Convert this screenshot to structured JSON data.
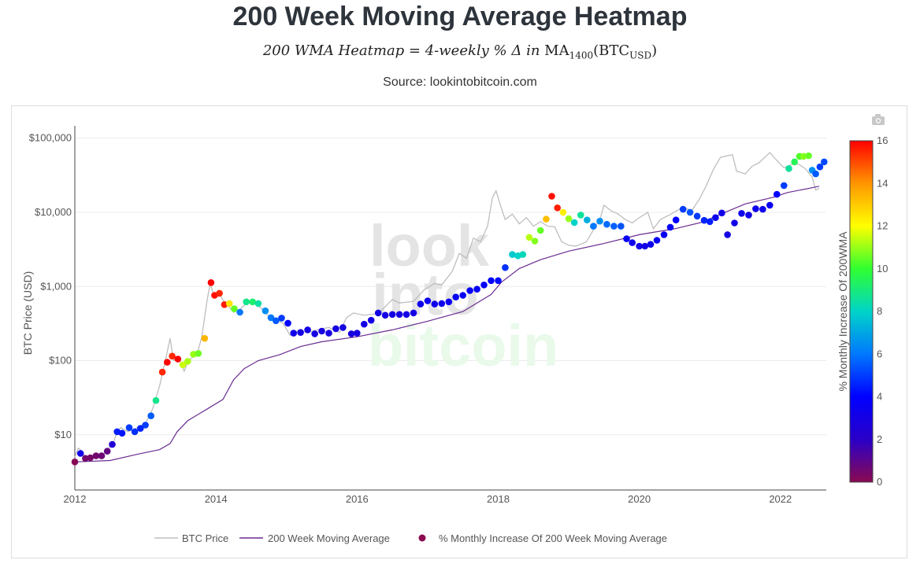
{
  "header": {
    "title": "200 Week Moving Average Heatmap",
    "subtitle_main": "200 WMA Heatmap = 4-weekly % Δ in ",
    "subtitle_ma": "MA",
    "subtitle_ma_sub": "1400",
    "subtitle_btc": "(BTC",
    "subtitle_btc_sub": "USD",
    "subtitle_close": ")",
    "source": "Source: lookintobitcoin.com"
  },
  "toolbar": {
    "camera_icon": "camera-icon"
  },
  "watermark": {
    "line1": "look",
    "line2": "into",
    "line3": "bitcoin",
    "color_gray": "#e4e4e4",
    "color_green": "#e9f9ea"
  },
  "chart_data": {
    "type": "scatter",
    "y_scale": "log",
    "xlim": [
      2012.0,
      2022.65
    ],
    "ylim": [
      1.8,
      130000
    ],
    "x_ticks": [
      2012,
      2014,
      2016,
      2018,
      2020,
      2022
    ],
    "x_tick_labels": [
      "2012",
      "2014",
      "2016",
      "2018",
      "2020",
      "2022"
    ],
    "y_ticks": [
      10,
      100,
      1000,
      10000,
      100000
    ],
    "y_tick_labels": [
      "$10",
      "$100",
      "$1,000",
      "$10,000",
      "$100,000"
    ],
    "ylabel": "BTC Price (USD)",
    "colorbar": {
      "title": "% Monthly Increase Of 200WMA",
      "min": 0,
      "max": 16,
      "ticks": [
        0,
        2,
        4,
        6,
        8,
        10,
        12,
        14,
        16
      ],
      "tick_labels": [
        "0",
        "2",
        "4",
        "6",
        "8",
        "10",
        "12",
        "14",
        "16"
      ],
      "colors": [
        "#8b0a50",
        "#2a00c8",
        "#0000ff",
        "#0078ff",
        "#00d4c8",
        "#30ff30",
        "#ffff00",
        "#ff9600",
        "#ff0000"
      ]
    },
    "legend": [
      "BTC Price",
      "200 Week Moving Average",
      "% Monthly Increase Of 200 Week Moving Average"
    ],
    "legend_colors": {
      "price": "#bdbdbd",
      "wma": "#6a2c91",
      "dot": "#8b0a50"
    },
    "wma_line": [
      [
        2012.0,
        4.3
      ],
      [
        2012.5,
        4.5
      ],
      [
        2012.9,
        5.5
      ],
      [
        2013.2,
        6.3
      ],
      [
        2013.35,
        7.6
      ],
      [
        2013.45,
        11
      ],
      [
        2013.6,
        15.5
      ],
      [
        2013.9,
        23
      ],
      [
        2014.1,
        30
      ],
      [
        2014.25,
        55
      ],
      [
        2014.4,
        78
      ],
      [
        2014.6,
        100
      ],
      [
        2014.9,
        120
      ],
      [
        2015.2,
        155
      ],
      [
        2015.5,
        180
      ],
      [
        2016.0,
        210
      ],
      [
        2016.5,
        260
      ],
      [
        2017.0,
        340
      ],
      [
        2017.5,
        460
      ],
      [
        2017.9,
        780
      ],
      [
        2018.05,
        1150
      ],
      [
        2018.3,
        1750
      ],
      [
        2018.6,
        2300
      ],
      [
        2019.0,
        3000
      ],
      [
        2019.5,
        3800
      ],
      [
        2020.0,
        5000
      ],
      [
        2020.5,
        6000
      ],
      [
        2020.9,
        7400
      ],
      [
        2021.1,
        9000
      ],
      [
        2021.5,
        13000
      ],
      [
        2021.9,
        16000
      ],
      [
        2022.1,
        18500
      ],
      [
        2022.45,
        21500
      ],
      [
        2022.55,
        22500
      ]
    ],
    "price_line": [
      [
        2012.0,
        5
      ],
      [
        2012.05,
        6.6
      ],
      [
        2012.1,
        6
      ],
      [
        2012.15,
        5
      ],
      [
        2012.25,
        4.9
      ],
      [
        2012.35,
        5.1
      ],
      [
        2012.45,
        6
      ],
      [
        2012.55,
        8
      ],
      [
        2012.6,
        11
      ],
      [
        2012.65,
        12.5
      ],
      [
        2012.75,
        11
      ],
      [
        2012.85,
        12
      ],
      [
        2012.95,
        13.5
      ],
      [
        2013.0,
        14
      ],
      [
        2013.1,
        22
      ],
      [
        2013.2,
        45
      ],
      [
        2013.3,
        120
      ],
      [
        2013.35,
        200
      ],
      [
        2013.4,
        100
      ],
      [
        2013.45,
        110
      ],
      [
        2013.5,
        95
      ],
      [
        2013.55,
        72
      ],
      [
        2013.6,
        95
      ],
      [
        2013.7,
        120
      ],
      [
        2013.75,
        140
      ],
      [
        2013.8,
        210
      ],
      [
        2013.88,
        700
      ],
      [
        2013.92,
        1100
      ],
      [
        2013.97,
        750
      ],
      [
        2014.05,
        800
      ],
      [
        2014.1,
        650
      ],
      [
        2014.15,
        580
      ],
      [
        2014.25,
        450
      ],
      [
        2014.35,
        500
      ],
      [
        2014.45,
        620
      ],
      [
        2014.55,
        600
      ],
      [
        2014.65,
        500
      ],
      [
        2014.75,
        400
      ],
      [
        2014.85,
        350
      ],
      [
        2014.95,
        320
      ],
      [
        2015.05,
        220
      ],
      [
        2015.15,
        250
      ],
      [
        2015.3,
        240
      ],
      [
        2015.5,
        270
      ],
      [
        2015.6,
        280
      ],
      [
        2015.75,
        240
      ],
      [
        2015.85,
        380
      ],
      [
        2015.95,
        440
      ],
      [
        2016.1,
        410
      ],
      [
        2016.3,
        430
      ],
      [
        2016.5,
        670
      ],
      [
        2016.6,
        600
      ],
      [
        2016.8,
        630
      ],
      [
        2016.95,
        900
      ],
      [
        2017.1,
        1100
      ],
      [
        2017.2,
        1050
      ],
      [
        2017.35,
        1600
      ],
      [
        2017.45,
        2800
      ],
      [
        2017.55,
        2400
      ],
      [
        2017.65,
        4500
      ],
      [
        2017.75,
        4000
      ],
      [
        2017.85,
        6500
      ],
      [
        2017.92,
        16000
      ],
      [
        2017.97,
        19500
      ],
      [
        2018.05,
        11000
      ],
      [
        2018.1,
        8000
      ],
      [
        2018.2,
        9500
      ],
      [
        2018.3,
        7000
      ],
      [
        2018.4,
        8500
      ],
      [
        2018.5,
        6500
      ],
      [
        2018.6,
        7500
      ],
      [
        2018.7,
        6500
      ],
      [
        2018.8,
        6400
      ],
      [
        2018.9,
        4000
      ],
      [
        2019.0,
        3600
      ],
      [
        2019.1,
        3500
      ],
      [
        2019.25,
        4000
      ],
      [
        2019.35,
        5800
      ],
      [
        2019.45,
        8500
      ],
      [
        2019.5,
        12500
      ],
      [
        2019.6,
        10500
      ],
      [
        2019.7,
        9500
      ],
      [
        2019.8,
        8000
      ],
      [
        2019.9,
        7200
      ],
      [
        2020.0,
        8500
      ],
      [
        2020.12,
        10000
      ],
      [
        2020.2,
        6000
      ],
      [
        2020.3,
        8000
      ],
      [
        2020.45,
        9500
      ],
      [
        2020.6,
        11500
      ],
      [
        2020.75,
        10800
      ],
      [
        2020.85,
        15000
      ],
      [
        2020.95,
        23000
      ],
      [
        2021.05,
        38000
      ],
      [
        2021.15,
        55000
      ],
      [
        2021.25,
        58000
      ],
      [
        2021.32,
        60000
      ],
      [
        2021.38,
        36000
      ],
      [
        2021.5,
        33000
      ],
      [
        2021.6,
        42000
      ],
      [
        2021.7,
        47000
      ],
      [
        2021.85,
        64000
      ],
      [
        2021.95,
        50000
      ],
      [
        2022.05,
        40000
      ],
      [
        2022.15,
        44000
      ],
      [
        2022.25,
        45000
      ],
      [
        2022.35,
        39000
      ],
      [
        2022.45,
        30000
      ],
      [
        2022.5,
        20000
      ],
      [
        2022.55,
        21000
      ]
    ],
    "points": [
      [
        2012.0,
        4.3,
        0.1
      ],
      [
        2012.08,
        5.6,
        3.2
      ],
      [
        2012.15,
        4.8,
        0.5
      ],
      [
        2012.22,
        4.9,
        0.4
      ],
      [
        2012.3,
        5.2,
        0.5
      ],
      [
        2012.38,
        5.2,
        0.6
      ],
      [
        2012.46,
        6.0,
        0.8
      ],
      [
        2012.53,
        7.4,
        2.5
      ],
      [
        2012.6,
        11.0,
        4.5
      ],
      [
        2012.67,
        10.5,
        4.3
      ],
      [
        2012.77,
        12.5,
        5.0
      ],
      [
        2012.85,
        11.0,
        4.8
      ],
      [
        2012.93,
        12.2,
        4.6
      ],
      [
        2013.0,
        13.5,
        5.0
      ],
      [
        2013.08,
        18.0,
        5.5
      ],
      [
        2013.15,
        29.0,
        8.8
      ],
      [
        2013.24,
        70.0,
        15.5
      ],
      [
        2013.31,
        95.0,
        16.0
      ],
      [
        2013.38,
        115.0,
        15.5
      ],
      [
        2013.46,
        105.0,
        16.0
      ],
      [
        2013.53,
        88.0,
        11.5
      ],
      [
        2013.6,
        98.0,
        11.2
      ],
      [
        2013.68,
        122.0,
        11.0
      ],
      [
        2013.75,
        125.0,
        10.6
      ],
      [
        2013.84,
        200.0,
        13.4
      ],
      [
        2013.93,
        1130.0,
        16.0
      ],
      [
        2013.98,
        760.0,
        15.8
      ],
      [
        2014.05,
        810.0,
        15.5
      ],
      [
        2014.12,
        570.0,
        15.6
      ],
      [
        2014.19,
        590.0,
        12.5
      ],
      [
        2014.26,
        500.0,
        10.5
      ],
      [
        2014.34,
        450.0,
        6.0
      ],
      [
        2014.43,
        620.0,
        8.8
      ],
      [
        2014.52,
        620.0,
        9.2
      ],
      [
        2014.6,
        590.0,
        8.5
      ],
      [
        2014.7,
        470.0,
        6.5
      ],
      [
        2014.78,
        380.0,
        6.0
      ],
      [
        2014.85,
        345.0,
        5.5
      ],
      [
        2014.93,
        375.0,
        5.0
      ],
      [
        2015.02,
        320.0,
        4.0
      ],
      [
        2015.1,
        235.0,
        3.2
      ],
      [
        2015.2,
        240.0,
        3.0
      ],
      [
        2015.3,
        260.0,
        3.1
      ],
      [
        2015.4,
        230.0,
        2.9
      ],
      [
        2015.5,
        250.0,
        2.9
      ],
      [
        2015.6,
        235.0,
        2.9
      ],
      [
        2015.7,
        270.0,
        3.0
      ],
      [
        2015.8,
        280.0,
        3.0
      ],
      [
        2015.92,
        230.0,
        2.8
      ],
      [
        2016.0,
        235.0,
        2.9
      ],
      [
        2016.1,
        310.0,
        3.0
      ],
      [
        2016.2,
        350.0,
        3.1
      ],
      [
        2016.3,
        440.0,
        3.1
      ],
      [
        2016.4,
        410.0,
        3.0
      ],
      [
        2016.5,
        420.0,
        3.0
      ],
      [
        2016.6,
        420.0,
        3.0
      ],
      [
        2016.7,
        420.0,
        3.0
      ],
      [
        2016.8,
        440.0,
        3.1
      ],
      [
        2016.9,
        580.0,
        3.3
      ],
      [
        2017.0,
        640.0,
        3.5
      ],
      [
        2017.1,
        580.0,
        3.3
      ],
      [
        2017.2,
        590.0,
        3.3
      ],
      [
        2017.3,
        620.0,
        3.4
      ],
      [
        2017.4,
        720.0,
        3.6
      ],
      [
        2017.5,
        760.0,
        3.6
      ],
      [
        2017.6,
        880.0,
        3.7
      ],
      [
        2017.7,
        920.0,
        3.7
      ],
      [
        2017.8,
        1050.0,
        3.8
      ],
      [
        2017.9,
        1200.0,
        4.0
      ],
      [
        2018.0,
        1200.0,
        4.2
      ],
      [
        2018.1,
        1800.0,
        4.8
      ],
      [
        2018.2,
        2700.0,
        7.8
      ],
      [
        2018.28,
        2600.0,
        8.0
      ],
      [
        2018.35,
        2700.0,
        8.2
      ],
      [
        2018.44,
        4600.0,
        11.3
      ],
      [
        2018.52,
        4100.0,
        10.8
      ],
      [
        2018.6,
        5700.0,
        10.5
      ],
      [
        2018.68,
        8100.0,
        13.2
      ],
      [
        2018.76,
        16500.0,
        15.8
      ],
      [
        2018.84,
        11500.0,
        15.6
      ],
      [
        2018.92,
        10000.0,
        12.3
      ],
      [
        2019.0,
        8200.0,
        11.0
      ],
      [
        2019.08,
        7300.0,
        8.0
      ],
      [
        2019.17,
        9200.0,
        8.6
      ],
      [
        2019.26,
        7900.0,
        7.2
      ],
      [
        2019.35,
        6500.0,
        6.0
      ],
      [
        2019.44,
        7600.0,
        6.5
      ],
      [
        2019.54,
        6900.0,
        5.8
      ],
      [
        2019.64,
        6500.0,
        5.6
      ],
      [
        2019.74,
        6500.0,
        5.4
      ],
      [
        2019.82,
        4400.0,
        3.6
      ],
      [
        2019.9,
        3900.0,
        3.4
      ],
      [
        2020.0,
        3500.0,
        3.2
      ],
      [
        2020.08,
        3500.0,
        3.1
      ],
      [
        2020.16,
        3700.0,
        3.3
      ],
      [
        2020.25,
        4200.0,
        3.6
      ],
      [
        2020.35,
        5000.0,
        3.6
      ],
      [
        2020.44,
        6300.0,
        3.7
      ],
      [
        2020.52,
        7900.0,
        3.8
      ],
      [
        2020.62,
        11000.0,
        5.0
      ],
      [
        2020.72,
        10000.0,
        5.4
      ],
      [
        2020.82,
        8900.0,
        5.0
      ],
      [
        2020.92,
        7800.0,
        4.6
      ],
      [
        2021.0,
        7500.0,
        4.5
      ],
      [
        2021.08,
        8500.0,
        3.5
      ],
      [
        2021.17,
        9800.0,
        3.2
      ],
      [
        2021.25,
        5000.0,
        3.0
      ],
      [
        2021.35,
        7200.0,
        3.2
      ],
      [
        2021.45,
        9700.0,
        3.3
      ],
      [
        2021.55,
        9200.0,
        3.2
      ],
      [
        2021.65,
        11200.0,
        3.3
      ],
      [
        2021.75,
        11000.0,
        3.3
      ],
      [
        2021.85,
        12500.0,
        3.5
      ],
      [
        2021.95,
        17500.0,
        4.0
      ],
      [
        2022.05,
        23000.0,
        5.0
      ],
      [
        2022.12,
        39000.0,
        8.6
      ],
      [
        2022.2,
        48000.0,
        9.5
      ],
      [
        2022.27,
        57000.0,
        10.3
      ],
      [
        2022.33,
        57000.0,
        10.8
      ],
      [
        2022.4,
        58000.0,
        10.5
      ],
      [
        2022.45,
        37000.0,
        6.5
      ],
      [
        2022.5,
        33000.0,
        5.5
      ],
      [
        2022.56,
        41000.0,
        5.0
      ],
      [
        2022.62,
        48000.0,
        5.2
      ]
    ]
  },
  "legend_labels": {
    "price": "BTC Price",
    "wma": "200 Week Moving Average",
    "dots": "% Monthly Increase Of 200 Week Moving Average"
  }
}
